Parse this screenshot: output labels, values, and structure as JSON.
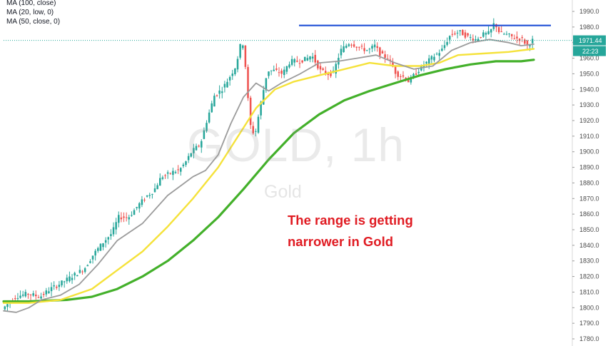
{
  "legend": [
    {
      "text": "MA (100, close)"
    },
    {
      "text": "MA (20, low, 0)"
    },
    {
      "text": "MA (50, close, 0)"
    }
  ],
  "annotation": {
    "line1": "The range is getting",
    "line2": "narrower in Gold"
  },
  "watermark": {
    "symbol": "GOLD, 1h",
    "name": "Gold"
  },
  "colors": {
    "up": "#26a69a",
    "down": "#ef5350",
    "ma100": "#43b02a",
    "ma20": "#9b9b9b",
    "ma50": "#f5e23a",
    "resistance": "#1f4fd6",
    "price_tag": "#26a69a",
    "timer_tag": "#26a69a"
  },
  "chart_data": {
    "type": "candlestick",
    "y_axis": {
      "position": "right",
      "ylim": [
        1775,
        1997
      ],
      "ticks": [
        1780,
        1790,
        1800,
        1810,
        1820,
        1830,
        1840,
        1850,
        1860,
        1870,
        1880,
        1890,
        1900,
        1910,
        1920,
        1930,
        1940,
        1950,
        1960,
        1970,
        1980,
        1990
      ]
    },
    "last_price": 1971.44,
    "last_price_label": "1971.44",
    "timer_label": "22:23",
    "resistance_level": 1981,
    "bar_count": 205,
    "series_close_points": [
      [
        0,
        1799
      ],
      [
        10,
        1807
      ],
      [
        20,
        1809
      ],
      [
        30,
        1807
      ],
      [
        38,
        1812
      ],
      [
        45,
        1815
      ],
      [
        55,
        1820
      ],
      [
        65,
        1825
      ],
      [
        72,
        1834
      ],
      [
        80,
        1842
      ],
      [
        87,
        1848
      ],
      [
        92,
        1858
      ],
      [
        100,
        1858
      ],
      [
        108,
        1866
      ],
      [
        115,
        1872
      ],
      [
        120,
        1875
      ],
      [
        126,
        1884
      ],
      [
        130,
        1885
      ],
      [
        135,
        1887
      ],
      [
        140,
        1888
      ],
      [
        145,
        1893
      ],
      [
        150,
        1900
      ],
      [
        157,
        1905
      ],
      [
        162,
        1920
      ],
      [
        168,
        1936
      ],
      [
        174,
        1940
      ],
      [
        178,
        1945
      ],
      [
        185,
        1955
      ],
      [
        188,
        1966
      ],
      [
        190,
        1973
      ],
      [
        193,
        1952
      ],
      [
        196,
        1918
      ],
      [
        200,
        1910
      ],
      [
        205,
        1932
      ],
      [
        210,
        1952
      ],
      [
        216,
        1952
      ],
      [
        222,
        1950
      ],
      [
        228,
        1958
      ],
      [
        235,
        1958
      ],
      [
        242,
        1960
      ],
      [
        245,
        1962
      ],
      [
        252,
        1952
      ],
      [
        258,
        1950
      ],
      [
        262,
        1950
      ],
      [
        268,
        1965
      ],
      [
        275,
        1970
      ],
      [
        280,
        1968
      ],
      [
        285,
        1966
      ],
      [
        290,
        1965
      ],
      [
        295,
        1968
      ],
      [
        300,
        1962
      ],
      [
        306,
        1960
      ],
      [
        312,
        1950
      ],
      [
        318,
        1948
      ],
      [
        322,
        1945
      ],
      [
        327,
        1950
      ],
      [
        333,
        1955
      ],
      [
        340,
        1960
      ],
      [
        348,
        1965
      ],
      [
        355,
        1975
      ],
      [
        362,
        1977
      ],
      [
        368,
        1974
      ],
      [
        375,
        1972
      ],
      [
        380,
        1975
      ],
      [
        386,
        1976
      ],
      [
        390,
        1983
      ],
      [
        394,
        1976
      ],
      [
        400,
        1975
      ],
      [
        406,
        1973
      ],
      [
        412,
        1972
      ],
      [
        416,
        1968
      ],
      [
        420,
        1971.44
      ]
    ],
    "series": [
      {
        "name": "MA (100, close)",
        "color": "#43b02a",
        "points": [
          [
            0,
            1804
          ],
          [
            20,
            1804
          ],
          [
            50,
            1805
          ],
          [
            70,
            1807
          ],
          [
            90,
            1812
          ],
          [
            110,
            1820
          ],
          [
            130,
            1830
          ],
          [
            150,
            1843
          ],
          [
            170,
            1858
          ],
          [
            190,
            1876
          ],
          [
            210,
            1895
          ],
          [
            230,
            1912
          ],
          [
            250,
            1924
          ],
          [
            270,
            1933
          ],
          [
            290,
            1939
          ],
          [
            310,
            1944
          ],
          [
            330,
            1949
          ],
          [
            350,
            1953
          ],
          [
            370,
            1956
          ],
          [
            390,
            1958
          ],
          [
            410,
            1958
          ],
          [
            420,
            1959
          ]
        ]
      },
      {
        "name": "MA (50, close, 0)",
        "color": "#f5e23a",
        "points": [
          [
            0,
            1803
          ],
          [
            20,
            1803
          ],
          [
            45,
            1805
          ],
          [
            70,
            1812
          ],
          [
            90,
            1824
          ],
          [
            110,
            1836
          ],
          [
            130,
            1852
          ],
          [
            150,
            1870
          ],
          [
            170,
            1890
          ],
          [
            185,
            1909
          ],
          [
            200,
            1928
          ],
          [
            215,
            1940
          ],
          [
            230,
            1945
          ],
          [
            250,
            1949
          ],
          [
            270,
            1953
          ],
          [
            290,
            1957
          ],
          [
            310,
            1955
          ],
          [
            330,
            1955
          ],
          [
            345,
            1957
          ],
          [
            360,
            1962
          ],
          [
            380,
            1963
          ],
          [
            400,
            1964
          ],
          [
            420,
            1966
          ]
        ]
      },
      {
        "name": "MA (20, low, 0)",
        "color": "#9b9b9b",
        "points": [
          [
            0,
            1798
          ],
          [
            10,
            1797
          ],
          [
            20,
            1800
          ],
          [
            30,
            1805
          ],
          [
            45,
            1808
          ],
          [
            60,
            1815
          ],
          [
            75,
            1828
          ],
          [
            90,
            1843
          ],
          [
            110,
            1854
          ],
          [
            130,
            1872
          ],
          [
            150,
            1884
          ],
          [
            160,
            1888
          ],
          [
            170,
            1898
          ],
          [
            180,
            1918
          ],
          [
            190,
            1935
          ],
          [
            200,
            1944
          ],
          [
            210,
            1939
          ],
          [
            220,
            1944
          ],
          [
            235,
            1950
          ],
          [
            250,
            1957
          ],
          [
            265,
            1958
          ],
          [
            280,
            1960
          ],
          [
            295,
            1962
          ],
          [
            310,
            1957
          ],
          [
            325,
            1953
          ],
          [
            340,
            1955
          ],
          [
            355,
            1965
          ],
          [
            370,
            1970
          ],
          [
            385,
            1972
          ],
          [
            400,
            1970
          ],
          [
            410,
            1968
          ],
          [
            420,
            1969
          ]
        ]
      }
    ]
  }
}
